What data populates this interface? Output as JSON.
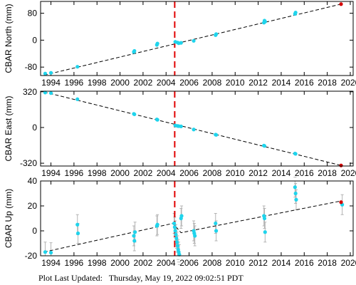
{
  "footer": {
    "label": "Plot Last Updated:",
    "value": "Thursday, May 19, 2022 09:02:51 PDT"
  },
  "colors": {
    "point": "#1fd4ec",
    "latest_point": "#d40000",
    "event_line": "#e00000",
    "trend_line": "#000000",
    "error_bar": "#b4b4b4"
  },
  "chart_data": [
    {
      "type": "scatter",
      "ylabel": "CBAR North (mm)",
      "xlim": [
        1993.1,
        2020.25
      ],
      "ylim": [
        -105,
        115
      ],
      "xticks": [
        1994,
        1996,
        1998,
        2000,
        2002,
        2004,
        2006,
        2008,
        2010,
        2012,
        2014,
        2016,
        2018,
        2020
      ],
      "yticks": [
        -80,
        0,
        80
      ],
      "event_x": 2004.75,
      "trend": [
        [
          1993.4,
          -104
        ],
        [
          2019.2,
          107
        ]
      ],
      "points": [
        [
          1993.5,
          -99
        ],
        [
          1994.0,
          -97
        ],
        [
          1996.3,
          -79
        ],
        [
          2001.2,
          -35
        ],
        [
          2001.25,
          -32
        ],
        [
          2003.2,
          -14
        ],
        [
          2003.25,
          -10
        ],
        [
          2004.8,
          -5
        ],
        [
          2005.0,
          -7
        ],
        [
          2005.1,
          -9
        ],
        [
          2005.3,
          -8
        ],
        [
          2006.4,
          -2
        ],
        [
          2008.3,
          15
        ],
        [
          2008.35,
          18
        ],
        [
          2012.5,
          52
        ],
        [
          2012.55,
          58
        ],
        [
          2012.6,
          55
        ],
        [
          2015.2,
          78
        ],
        [
          2015.25,
          82
        ]
      ],
      "latest": [
        2019.2,
        107
      ]
    },
    {
      "type": "scatter",
      "ylabel": "CBAR East (mm)",
      "xlim": [
        1993.1,
        2020.25
      ],
      "ylim": [
        -345,
        325
      ],
      "xticks": [
        1994,
        1996,
        1998,
        2000,
        2002,
        2004,
        2006,
        2008,
        2010,
        2012,
        2014,
        2016,
        2018,
        2020
      ],
      "yticks": [
        -320,
        0,
        320
      ],
      "event_x": 2004.75,
      "trend": [
        [
          1993.4,
          318
        ],
        [
          2019.2,
          -340
        ]
      ],
      "points": [
        [
          1993.5,
          313
        ],
        [
          1994.0,
          308
        ],
        [
          1996.3,
          253
        ],
        [
          2001.2,
          122
        ],
        [
          2001.25,
          118
        ],
        [
          2003.2,
          72
        ],
        [
          2003.25,
          69
        ],
        [
          2004.8,
          18
        ],
        [
          2005.0,
          14
        ],
        [
          2005.1,
          12
        ],
        [
          2005.3,
          10
        ],
        [
          2006.4,
          -18
        ],
        [
          2008.3,
          -64
        ],
        [
          2008.35,
          -66
        ],
        [
          2012.5,
          -162
        ],
        [
          2012.55,
          -165
        ],
        [
          2015.2,
          -233
        ],
        [
          2015.25,
          -236
        ]
      ],
      "latest": [
        2019.2,
        -340
      ]
    },
    {
      "type": "scatter",
      "ylabel": "CBAR Up (mm)",
      "xlim": [
        1993.1,
        2020.25
      ],
      "ylim": [
        -20,
        40
      ],
      "xticks": [
        1994,
        1996,
        1998,
        2000,
        2002,
        2004,
        2006,
        2008,
        2010,
        2012,
        2014,
        2016,
        2018,
        2020
      ],
      "yticks": [
        -20,
        0,
        20,
        40
      ],
      "event_x": 2004.75,
      "trend": [
        [
          1993.4,
          -17
        ],
        [
          2004.6,
          6
        ],
        [
          2005.3,
          -1.5
        ],
        [
          2019.2,
          24
        ]
      ],
      "points": [
        [
          1993.5,
          -17
        ],
        [
          1994.0,
          -17.5
        ],
        [
          1996.3,
          5
        ],
        [
          1996.35,
          -2
        ],
        [
          2001.2,
          -4
        ],
        [
          2001.25,
          -8
        ],
        [
          2001.3,
          -1
        ],
        [
          2003.2,
          4
        ],
        [
          2003.25,
          5
        ],
        [
          2004.7,
          6
        ],
        [
          2004.75,
          3
        ],
        [
          2004.8,
          0
        ],
        [
          2004.85,
          -3
        ],
        [
          2004.9,
          -6
        ],
        [
          2004.95,
          -9
        ],
        [
          2005.0,
          -12
        ],
        [
          2005.05,
          -15
        ],
        [
          2005.1,
          -17
        ],
        [
          2005.15,
          -19
        ],
        [
          2005.3,
          10
        ],
        [
          2005.35,
          12
        ],
        [
          2006.4,
          0
        ],
        [
          2006.45,
          -2
        ],
        [
          2006.5,
          -4
        ],
        [
          2008.3,
          6
        ],
        [
          2008.35,
          0
        ],
        [
          2012.5,
          12
        ],
        [
          2012.55,
          10
        ],
        [
          2012.6,
          -1
        ],
        [
          2015.2,
          35
        ],
        [
          2015.25,
          30
        ],
        [
          2015.3,
          25
        ],
        [
          2019.3,
          21
        ]
      ],
      "latest": [
        2019.2,
        23
      ],
      "error": 8
    }
  ]
}
